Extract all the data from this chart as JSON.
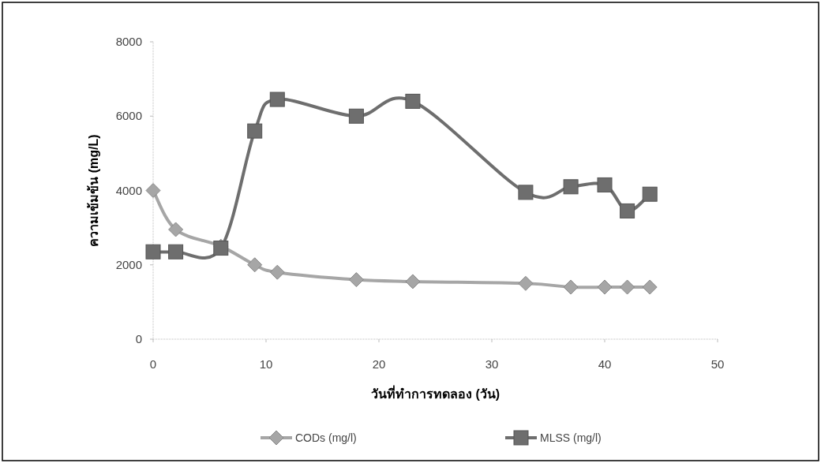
{
  "chart_data": {
    "type": "line",
    "xlabel": "วันที่ทำการทดลอง (วัน)",
    "ylabel": "ความเข้มข้น (mg/L)",
    "xlim": [
      0,
      50
    ],
    "xticks": [
      0,
      10,
      20,
      30,
      40,
      50
    ],
    "ylim": [
      0,
      8000
    ],
    "yticks": [
      0,
      2000,
      4000,
      6000,
      8000
    ],
    "x": [
      0,
      2,
      6,
      9,
      11,
      18,
      23,
      33,
      37,
      40,
      42,
      44
    ],
    "legend": "bottom",
    "grid": false,
    "series": [
      {
        "name": "CODs (mg/l)",
        "color": "#a6a6a6",
        "marker": "diamond",
        "values": [
          4000,
          2950,
          2500,
          2000,
          1800,
          1600,
          1550,
          1500,
          1400,
          1400,
          1400,
          1400
        ]
      },
      {
        "name": "MLSS (mg/l)",
        "color": "#6e6e6e",
        "marker": "square",
        "values": [
          2350,
          2350,
          2450,
          5600,
          6450,
          6000,
          6400,
          3950,
          4100,
          4150,
          3450,
          3900
        ]
      }
    ]
  }
}
